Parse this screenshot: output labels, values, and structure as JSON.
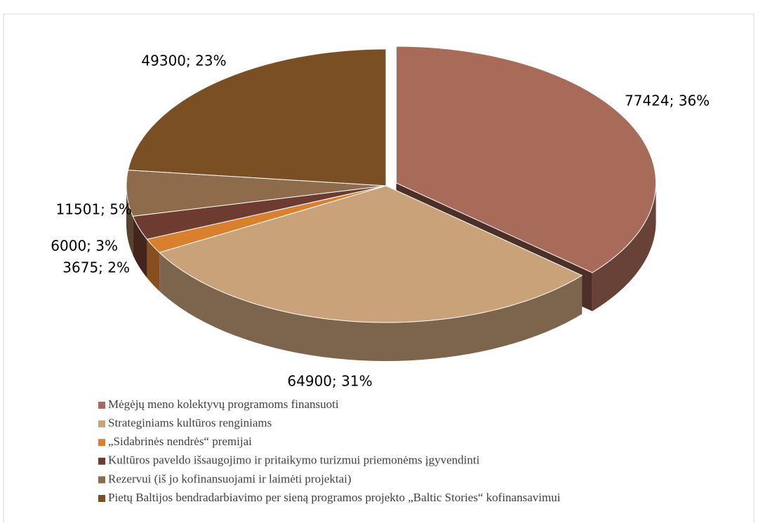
{
  "chart_data": {
    "type": "pie",
    "categories": [
      "Mėgėjų meno kolektyvų programoms finansuoti",
      "Strateginiams kultūros renginiams",
      "„Sidabrinės nendrės“ premijai",
      "Kultūros paveldo išsaugojimo ir pritaikymo turizmui priemonėms įgyvendinti",
      "Rezervui (iš jo kofinansuojami ir laimėti projektai)",
      "Pietų Baltijos bendradarbiavimo per sieną programos projekto „Baltic Stories“ kofinansavimui"
    ],
    "values": [
      77424,
      64900,
      3675,
      6000,
      11501,
      49300
    ],
    "value_labels": [
      "77424; 36%",
      "64900; 31%",
      "3675; 2%",
      "6000; 3%",
      "11501; 5%",
      "49300; 23%"
    ],
    "colors": [
      "#a96b59",
      "#c9a27a",
      "#d9802e",
      "#6e3b30",
      "#8e6b4a",
      "#7b4f24"
    ],
    "legend": "bottom"
  }
}
